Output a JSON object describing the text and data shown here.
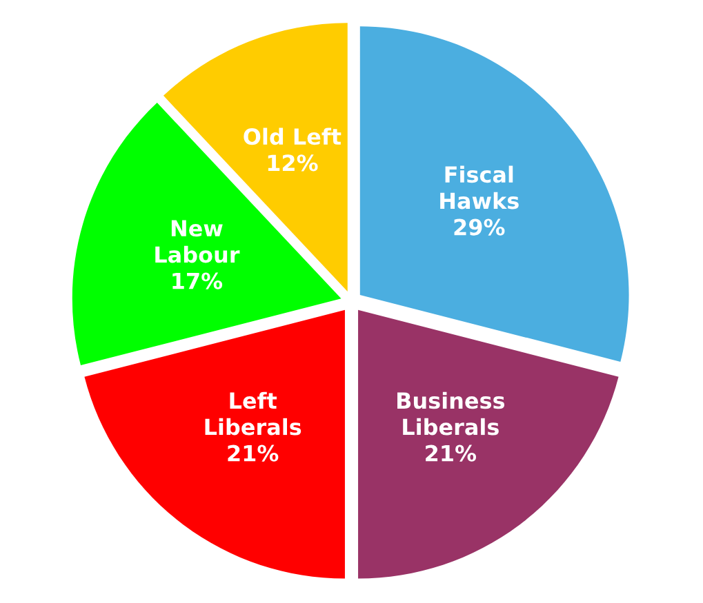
{
  "chart_data": {
    "type": "pie",
    "categories": [
      "Fiscal\nHawks",
      "Business\nLiberals",
      "Left\nLiberals",
      "New\nLabour",
      "Old Left"
    ],
    "values": [
      29,
      21,
      21,
      17,
      12
    ],
    "value_labels": [
      "29%",
      "21%",
      "21%",
      "17%",
      "12%"
    ],
    "colors": [
      "#4baee0",
      "#993366",
      "#ff0000",
      "#00ff00",
      "#ffcc00"
    ]
  }
}
